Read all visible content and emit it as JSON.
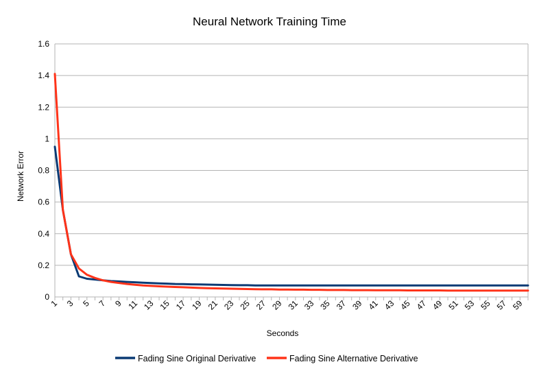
{
  "chart_data": {
    "type": "line",
    "title": "Neural Network Training Time",
    "xlabel": "Seconds",
    "ylabel": "Network Error",
    "ylim": [
      0,
      1.6
    ],
    "yticks": [
      "0",
      "0.2",
      "0.4",
      "0.6",
      "0.8",
      "1",
      "1.2",
      "1.4",
      "1.6"
    ],
    "x": [
      1,
      2,
      3,
      4,
      5,
      6,
      7,
      8,
      9,
      10,
      11,
      12,
      13,
      14,
      15,
      16,
      17,
      18,
      19,
      20,
      21,
      22,
      23,
      24,
      25,
      26,
      27,
      28,
      29,
      30,
      31,
      32,
      33,
      34,
      35,
      36,
      37,
      38,
      39,
      40,
      41,
      42,
      43,
      44,
      45,
      46,
      47,
      48,
      49,
      50,
      51,
      52,
      53,
      54,
      55,
      56,
      57,
      58,
      59,
      60
    ],
    "xticks": [
      "1",
      "3",
      "5",
      "7",
      "9",
      "11",
      "13",
      "15",
      "17",
      "19",
      "21",
      "23",
      "25",
      "27",
      "29",
      "31",
      "33",
      "35",
      "37",
      "39",
      "41",
      "43",
      "45",
      "47",
      "49",
      "51",
      "53",
      "55",
      "57",
      "59"
    ],
    "grid": true,
    "legend_position": "bottom",
    "series": [
      {
        "name": "Fading Sine Original Derivative",
        "color": "#0a3a74",
        "values": [
          0.95,
          0.55,
          0.27,
          0.13,
          0.115,
          0.11,
          0.105,
          0.1,
          0.098,
          0.095,
          0.093,
          0.09,
          0.088,
          0.086,
          0.084,
          0.082,
          0.081,
          0.08,
          0.079,
          0.078,
          0.077,
          0.076,
          0.075,
          0.074,
          0.074,
          0.073,
          0.073,
          0.073,
          0.073,
          0.073,
          0.073,
          0.073,
          0.073,
          0.073,
          0.073,
          0.073,
          0.073,
          0.073,
          0.073,
          0.073,
          0.073,
          0.073,
          0.073,
          0.073,
          0.073,
          0.073,
          0.073,
          0.073,
          0.073,
          0.073,
          0.073,
          0.073,
          0.073,
          0.073,
          0.073,
          0.073,
          0.073,
          0.073,
          0.073,
          0.073
        ]
      },
      {
        "name": "Fading Sine Alternative Derivative",
        "color": "#ff3319",
        "values": [
          1.41,
          0.55,
          0.27,
          0.18,
          0.14,
          0.12,
          0.105,
          0.095,
          0.088,
          0.082,
          0.077,
          0.073,
          0.07,
          0.067,
          0.065,
          0.063,
          0.061,
          0.059,
          0.057,
          0.055,
          0.054,
          0.053,
          0.052,
          0.051,
          0.05,
          0.049,
          0.048,
          0.048,
          0.047,
          0.047,
          0.046,
          0.046,
          0.045,
          0.045,
          0.044,
          0.044,
          0.044,
          0.043,
          0.043,
          0.043,
          0.042,
          0.042,
          0.042,
          0.042,
          0.041,
          0.041,
          0.041,
          0.041,
          0.041,
          0.04,
          0.04,
          0.04,
          0.04,
          0.04,
          0.04,
          0.04,
          0.04,
          0.04,
          0.04,
          0.04
        ]
      }
    ]
  }
}
